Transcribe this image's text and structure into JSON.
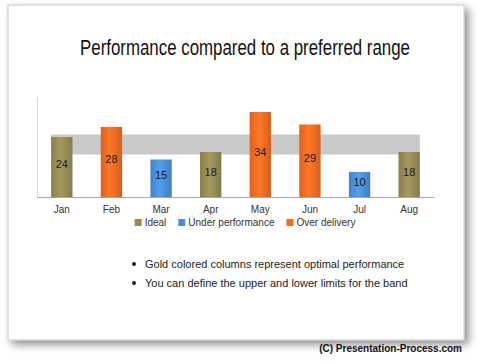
{
  "chart_data": {
    "type": "bar",
    "title": "Performance compared to a preferred range",
    "categories": [
      "Jan",
      "Feb",
      "Mar",
      "Apr",
      "May",
      "Jun",
      "Jul",
      "Aug"
    ],
    "series": [
      {
        "name": "Ideal",
        "color": "#948a54",
        "values": [
          24,
          null,
          null,
          18,
          null,
          null,
          null,
          18
        ]
      },
      {
        "name": "Under performance",
        "color": "#4a8fd8",
        "values": [
          null,
          null,
          15,
          null,
          null,
          null,
          10,
          null
        ]
      },
      {
        "name": "Over delivery",
        "color": "#f26b21",
        "values": [
          null,
          28,
          null,
          null,
          34,
          29,
          null,
          null
        ]
      }
    ],
    "band": [
      17,
      25
    ],
    "ylim": [
      0,
      40
    ],
    "yticks": [],
    "tick_labels": "x",
    "data_labels": true,
    "legend": "bottom",
    "grid": false
  },
  "bullets": [
    "Gold colored columns represent optimal performance",
    "You can define the upper and lower limits for the band"
  ],
  "credit": "(C) Presentation-Process.com"
}
